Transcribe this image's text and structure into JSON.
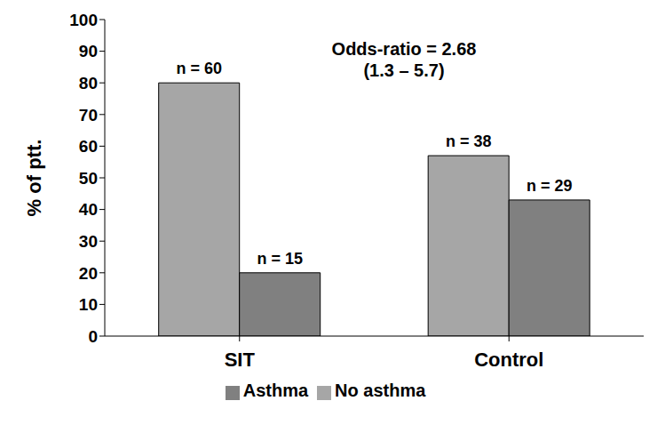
{
  "chart_data": {
    "type": "bar",
    "categories": [
      "SIT",
      "Control"
    ],
    "series": [
      {
        "name": "No asthma",
        "color": "#a6a6a6",
        "values": [
          80,
          57
        ],
        "n_labels": [
          "n = 60",
          "n = 38"
        ]
      },
      {
        "name": "Asthma",
        "color": "#808080",
        "values": [
          20,
          43
        ],
        "n_labels": [
          "n = 15",
          "n = 29"
        ]
      }
    ],
    "y_label": "% of ptt.",
    "ylim": [
      0,
      100
    ],
    "yticks": [
      0,
      10,
      20,
      30,
      40,
      50,
      60,
      70,
      80,
      90,
      100
    ],
    "grid": false,
    "legend": "bottom",
    "annotations": [
      "Odds-ratio = 2.68",
      "(1.3 – 5.7)"
    ]
  }
}
